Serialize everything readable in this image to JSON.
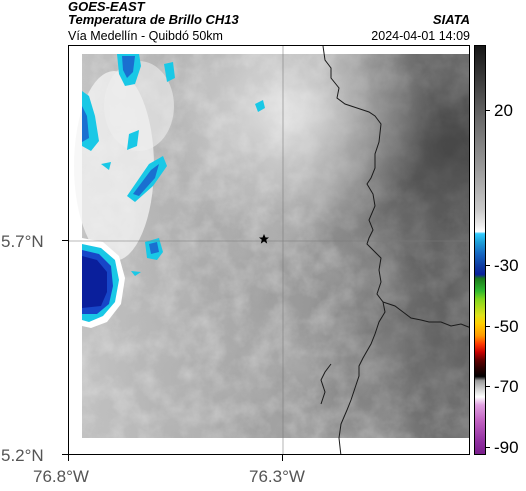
{
  "header": {
    "satellite": "GOES-EAST",
    "product": "Temperatura de Brillo CH13",
    "organization": "SIATA",
    "region": "Vía Medellín - Quibdó 50km",
    "datetime": "2024-04-01 14:09"
  },
  "axes": {
    "y_ticks": [
      {
        "label": "5.7°N",
        "value": 5.7
      },
      {
        "label": "5.2°N",
        "value": 5.2
      }
    ],
    "x_ticks": [
      {
        "label": "76.8°W",
        "value": -76.8
      },
      {
        "label": "76.3°W",
        "value": -76.3
      }
    ]
  },
  "colorbar": {
    "units_hint": "°C",
    "ticks": [
      {
        "label": "20",
        "value": 20
      },
      {
        "label": "-30",
        "value": -30
      },
      {
        "label": "-50",
        "value": -50
      },
      {
        "label": "-70",
        "value": -70
      },
      {
        "label": "-90",
        "value": -90
      }
    ]
  },
  "map": {
    "marker": "star-marker",
    "marker_lon": -76.35,
    "marker_lat": 5.7,
    "grid": "on",
    "cold_cloud_color": "#0a1f9c",
    "cyan_edge_color": "#19c8e6"
  }
}
